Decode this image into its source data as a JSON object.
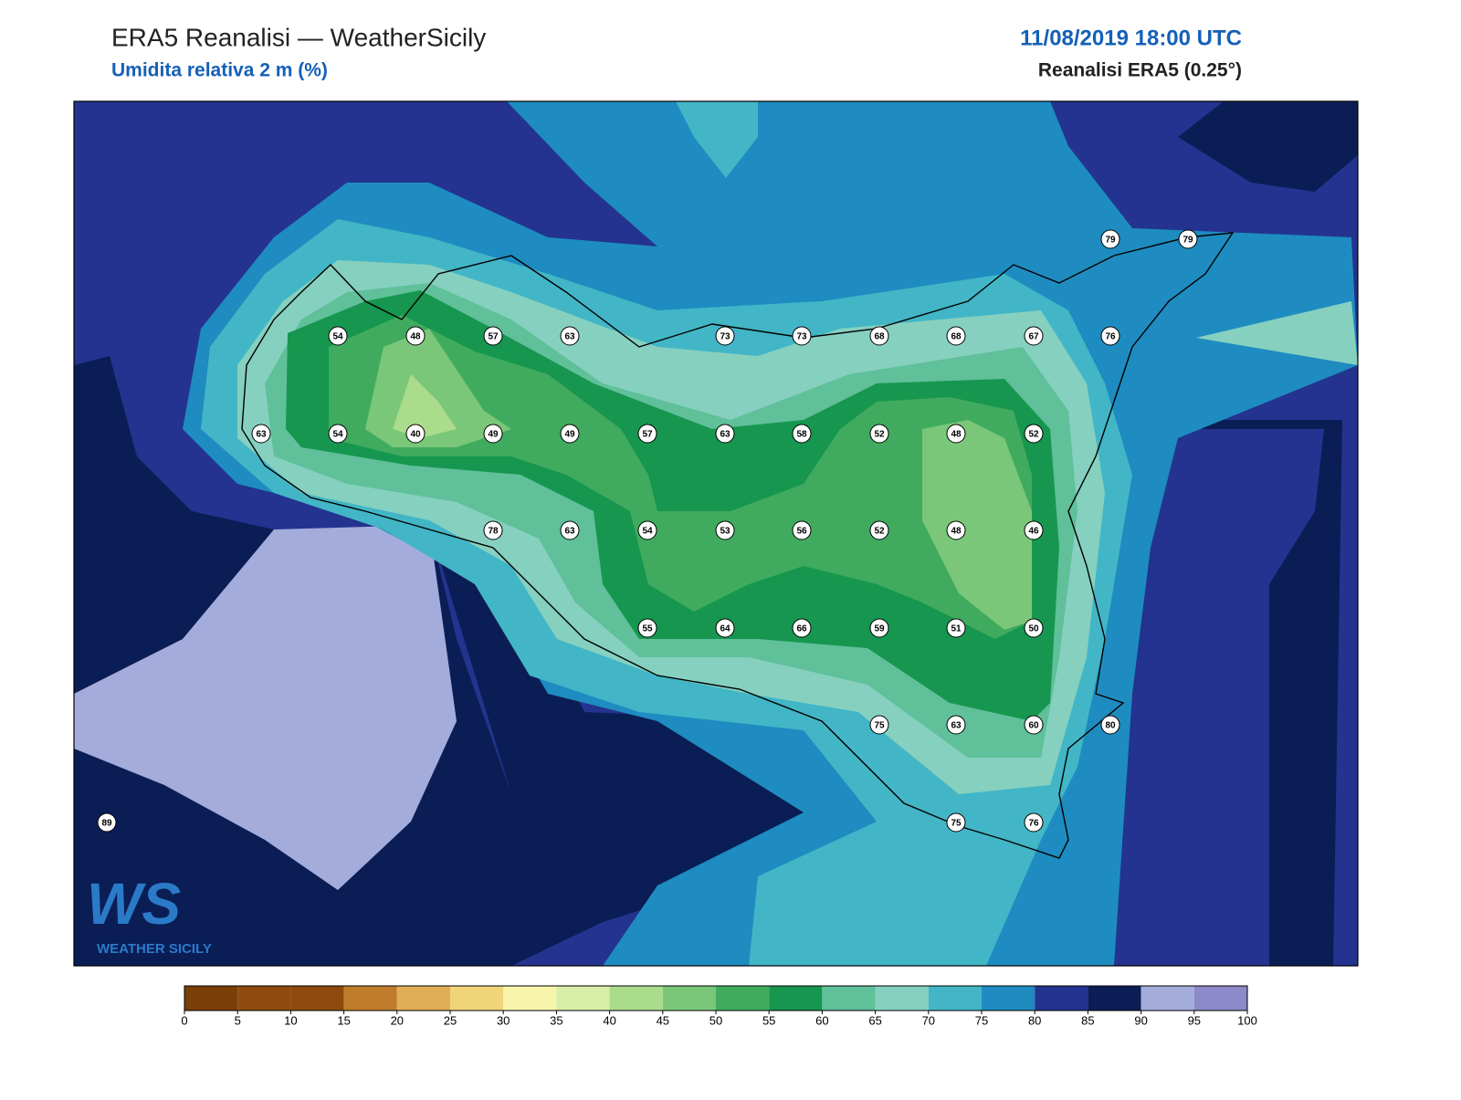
{
  "header": {
    "title": "ERA5 Reanalisi — WeatherSicily",
    "subtitle": "Umidita relativa 2 m (%)",
    "datetime": "11/08/2019 18:00 UTC",
    "source": "Reanalisi ERA5 (0.25°)"
  },
  "stations": [
    {
      "value": 79
    },
    {
      "value": 79
    },
    {
      "value": 54
    },
    {
      "value": 48
    },
    {
      "value": 57
    },
    {
      "value": 63
    },
    {
      "value": 73
    },
    {
      "value": 73
    },
    {
      "value": 68
    },
    {
      "value": 68
    },
    {
      "value": 67
    },
    {
      "value": 76
    },
    {
      "value": 63
    },
    {
      "value": 54
    },
    {
      "value": 40
    },
    {
      "value": 49
    },
    {
      "value": 49
    },
    {
      "value": 57
    },
    {
      "value": 63
    },
    {
      "value": 58
    },
    {
      "value": 52
    },
    {
      "value": 48
    },
    {
      "value": 52
    },
    {
      "value": 78
    },
    {
      "value": 63
    },
    {
      "value": 54
    },
    {
      "value": 53
    },
    {
      "value": 56
    },
    {
      "value": 52
    },
    {
      "value": 48
    },
    {
      "value": 46
    },
    {
      "value": 55
    },
    {
      "value": 64
    },
    {
      "value": 66
    },
    {
      "value": 59
    },
    {
      "value": 51
    },
    {
      "value": 50
    },
    {
      "value": 75
    },
    {
      "value": 63
    },
    {
      "value": 60
    },
    {
      "value": 80
    },
    {
      "value": 89
    },
    {
      "value": 75
    },
    {
      "value": 76
    }
  ],
  "colorbar": {
    "ticks": [
      0,
      5,
      10,
      15,
      20,
      25,
      30,
      35,
      40,
      45,
      50,
      55,
      60,
      65,
      70,
      75,
      80,
      85,
      90,
      95,
      100
    ],
    "colors": [
      "#7a3f06",
      "#8e4b0d",
      "#8e4b0d",
      "#c07c2a",
      "#e0ae55",
      "#f0d47a",
      "#f6f5aa",
      "#d9eea8",
      "#aadc8c",
      "#7ac77a",
      "#40ab5e",
      "#17964f",
      "#5fc09a",
      "#86d0c0",
      "#42b6c6",
      "#1e8cc0",
      "#23338f",
      "#0b1d55",
      "#a4acdc",
      "#8c8ac8"
    ]
  },
  "logo": {
    "mark": "WS",
    "text": "WEATHER SICILY"
  }
}
